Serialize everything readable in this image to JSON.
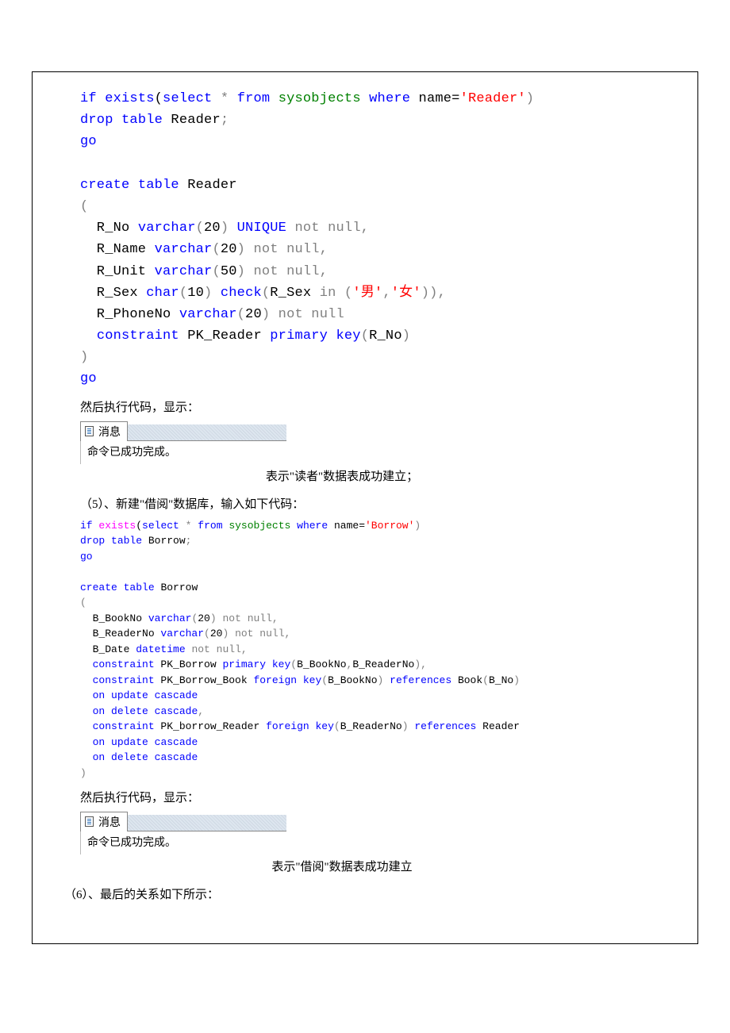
{
  "code1_lines": [
    [
      {
        "t": "if",
        "c": "kw"
      },
      {
        "t": " "
      },
      {
        "t": "exists",
        "c": "kw"
      },
      {
        "t": "("
      },
      {
        "t": "select",
        "c": "kw"
      },
      {
        "t": " "
      },
      {
        "t": "*",
        "c": "gray"
      },
      {
        "t": " "
      },
      {
        "t": "from",
        "c": "kw"
      },
      {
        "t": " "
      },
      {
        "t": "sysobjects",
        "c": "sys"
      },
      {
        "t": " "
      },
      {
        "t": "where",
        "c": "kw"
      },
      {
        "t": " name"
      },
      {
        "t": "="
      },
      {
        "t": "'Reader'",
        "c": "str"
      },
      {
        "t": ")",
        "c": "gray"
      }
    ],
    [
      {
        "t": "drop",
        "c": "kw"
      },
      {
        "t": " "
      },
      {
        "t": "table",
        "c": "kw"
      },
      {
        "t": " Reader"
      },
      {
        "t": ";",
        "c": "gray"
      }
    ],
    [
      {
        "t": "go",
        "c": "kw"
      }
    ],
    [
      {
        "t": " "
      }
    ],
    [
      {
        "t": "create",
        "c": "kw"
      },
      {
        "t": " "
      },
      {
        "t": "table",
        "c": "kw"
      },
      {
        "t": " Reader"
      }
    ],
    [
      {
        "t": "(",
        "c": "gray"
      }
    ],
    [
      {
        "t": "  R_No "
      },
      {
        "t": "varchar",
        "c": "kw"
      },
      {
        "t": "(",
        "c": "gray"
      },
      {
        "t": "20"
      },
      {
        "t": ")",
        "c": "gray"
      },
      {
        "t": " "
      },
      {
        "t": "UNIQUE",
        "c": "kw"
      },
      {
        "t": " "
      },
      {
        "t": "not",
        "c": "gray"
      },
      {
        "t": " "
      },
      {
        "t": "null",
        "c": "gray"
      },
      {
        "t": ",",
        "c": "gray"
      }
    ],
    [
      {
        "t": "  R_Name "
      },
      {
        "t": "varchar",
        "c": "kw"
      },
      {
        "t": "(",
        "c": "gray"
      },
      {
        "t": "20"
      },
      {
        "t": ")",
        "c": "gray"
      },
      {
        "t": " "
      },
      {
        "t": "not",
        "c": "gray"
      },
      {
        "t": " "
      },
      {
        "t": "null",
        "c": "gray"
      },
      {
        "t": ",",
        "c": "gray"
      }
    ],
    [
      {
        "t": "  R_Unit "
      },
      {
        "t": "varchar",
        "c": "kw"
      },
      {
        "t": "(",
        "c": "gray"
      },
      {
        "t": "50"
      },
      {
        "t": ")",
        "c": "gray"
      },
      {
        "t": " "
      },
      {
        "t": "not",
        "c": "gray"
      },
      {
        "t": " "
      },
      {
        "t": "null",
        "c": "gray"
      },
      {
        "t": ",",
        "c": "gray"
      }
    ],
    [
      {
        "t": "  R_Sex "
      },
      {
        "t": "char",
        "c": "kw"
      },
      {
        "t": "(",
        "c": "gray"
      },
      {
        "t": "10"
      },
      {
        "t": ")",
        "c": "gray"
      },
      {
        "t": " "
      },
      {
        "t": "check",
        "c": "kw"
      },
      {
        "t": "(",
        "c": "gray"
      },
      {
        "t": "R_Sex "
      },
      {
        "t": "in",
        "c": "gray"
      },
      {
        "t": " "
      },
      {
        "t": "(",
        "c": "gray"
      },
      {
        "t": "'男'",
        "c": "str"
      },
      {
        "t": ",",
        "c": "gray"
      },
      {
        "t": "'女'",
        "c": "str"
      },
      {
        "t": ")),",
        "c": "gray"
      }
    ],
    [
      {
        "t": "  R_PhoneNo "
      },
      {
        "t": "varchar",
        "c": "kw"
      },
      {
        "t": "(",
        "c": "gray"
      },
      {
        "t": "20"
      },
      {
        "t": ")",
        "c": "gray"
      },
      {
        "t": " "
      },
      {
        "t": "not",
        "c": "gray"
      },
      {
        "t": " "
      },
      {
        "t": "null",
        "c": "gray"
      }
    ],
    [
      {
        "t": "  "
      },
      {
        "t": "constraint",
        "c": "kw"
      },
      {
        "t": " PK_Reader "
      },
      {
        "t": "primary",
        "c": "kw"
      },
      {
        "t": " "
      },
      {
        "t": "key",
        "c": "kw"
      },
      {
        "t": "(",
        "c": "gray"
      },
      {
        "t": "R_No"
      },
      {
        "t": ")",
        "c": "gray"
      }
    ],
    [
      {
        "t": ")",
        "c": "gray"
      }
    ],
    [
      {
        "t": "go",
        "c": "kw"
      }
    ]
  ],
  "narr1": "然后执行代码，显示：",
  "msg_tab": "消息",
  "msg_text": "命令已成功完成。",
  "caption1": "表示\"读者\"数据表成功建立；",
  "step5": "（5）、新建\"借阅\"数据库，输入如下代码：",
  "code2_lines": [
    [
      {
        "t": "if",
        "c": "kw"
      },
      {
        "t": " "
      },
      {
        "t": "exists",
        "c": "fn"
      },
      {
        "t": "("
      },
      {
        "t": "select",
        "c": "kw"
      },
      {
        "t": " "
      },
      {
        "t": "*",
        "c": "gray"
      },
      {
        "t": " "
      },
      {
        "t": "from",
        "c": "kw"
      },
      {
        "t": " "
      },
      {
        "t": "sysobjects",
        "c": "sys"
      },
      {
        "t": " "
      },
      {
        "t": "where",
        "c": "kw"
      },
      {
        "t": " name"
      },
      {
        "t": "="
      },
      {
        "t": "'Borrow'",
        "c": "str"
      },
      {
        "t": ")",
        "c": "gray"
      }
    ],
    [
      {
        "t": "drop",
        "c": "kw"
      },
      {
        "t": " "
      },
      {
        "t": "table",
        "c": "kw"
      },
      {
        "t": " Borrow"
      },
      {
        "t": ";",
        "c": "gray"
      }
    ],
    [
      {
        "t": "go",
        "c": "kw"
      }
    ],
    [
      {
        "t": " "
      }
    ],
    [
      {
        "t": "create",
        "c": "kw"
      },
      {
        "t": " "
      },
      {
        "t": "table",
        "c": "kw"
      },
      {
        "t": " Borrow"
      }
    ],
    [
      {
        "t": "(",
        "c": "gray"
      }
    ],
    [
      {
        "t": "  B_BookNo "
      },
      {
        "t": "varchar",
        "c": "kw"
      },
      {
        "t": "(",
        "c": "gray"
      },
      {
        "t": "20"
      },
      {
        "t": ")",
        "c": "gray"
      },
      {
        "t": " "
      },
      {
        "t": "not",
        "c": "gray"
      },
      {
        "t": " "
      },
      {
        "t": "null",
        "c": "gray"
      },
      {
        "t": ",",
        "c": "gray"
      }
    ],
    [
      {
        "t": "  B_ReaderNo "
      },
      {
        "t": "varchar",
        "c": "kw"
      },
      {
        "t": "(",
        "c": "gray"
      },
      {
        "t": "20"
      },
      {
        "t": ")",
        "c": "gray"
      },
      {
        "t": " "
      },
      {
        "t": "not",
        "c": "gray"
      },
      {
        "t": " "
      },
      {
        "t": "null",
        "c": "gray"
      },
      {
        "t": ",",
        "c": "gray"
      }
    ],
    [
      {
        "t": "  B_Date "
      },
      {
        "t": "datetime",
        "c": "kw"
      },
      {
        "t": " "
      },
      {
        "t": "not",
        "c": "gray"
      },
      {
        "t": " "
      },
      {
        "t": "null",
        "c": "gray"
      },
      {
        "t": ",",
        "c": "gray"
      }
    ],
    [
      {
        "t": "  "
      },
      {
        "t": "constraint",
        "c": "kw"
      },
      {
        "t": " PK_Borrow "
      },
      {
        "t": "primary",
        "c": "kw"
      },
      {
        "t": " "
      },
      {
        "t": "key",
        "c": "kw"
      },
      {
        "t": "(",
        "c": "gray"
      },
      {
        "t": "B_BookNo"
      },
      {
        "t": ",",
        "c": "gray"
      },
      {
        "t": "B_ReaderNo"
      },
      {
        "t": "),",
        "c": "gray"
      }
    ],
    [
      {
        "t": "  "
      },
      {
        "t": "constraint",
        "c": "kw"
      },
      {
        "t": " PK_Borrow_Book "
      },
      {
        "t": "foreign",
        "c": "kw"
      },
      {
        "t": " "
      },
      {
        "t": "key",
        "c": "kw"
      },
      {
        "t": "(",
        "c": "gray"
      },
      {
        "t": "B_BookNo"
      },
      {
        "t": ")",
        "c": "gray"
      },
      {
        "t": " "
      },
      {
        "t": "references",
        "c": "kw"
      },
      {
        "t": " Book"
      },
      {
        "t": "(",
        "c": "gray"
      },
      {
        "t": "B_No"
      },
      {
        "t": ")",
        "c": "gray"
      }
    ],
    [
      {
        "t": "  "
      },
      {
        "t": "on",
        "c": "kw"
      },
      {
        "t": " "
      },
      {
        "t": "update",
        "c": "kw"
      },
      {
        "t": " "
      },
      {
        "t": "cascade",
        "c": "kw"
      }
    ],
    [
      {
        "t": "  "
      },
      {
        "t": "on",
        "c": "kw"
      },
      {
        "t": " "
      },
      {
        "t": "delete",
        "c": "kw"
      },
      {
        "t": " "
      },
      {
        "t": "cascade",
        "c": "kw"
      },
      {
        "t": ",",
        "c": "gray"
      }
    ],
    [
      {
        "t": "  "
      },
      {
        "t": "constraint",
        "c": "kw"
      },
      {
        "t": " PK_borrow_Reader "
      },
      {
        "t": "foreign",
        "c": "kw"
      },
      {
        "t": " "
      },
      {
        "t": "key",
        "c": "kw"
      },
      {
        "t": "(",
        "c": "gray"
      },
      {
        "t": "B_ReaderNo"
      },
      {
        "t": ")",
        "c": "gray"
      },
      {
        "t": " "
      },
      {
        "t": "references",
        "c": "kw"
      },
      {
        "t": " Reader"
      }
    ],
    [
      {
        "t": "  "
      },
      {
        "t": "on",
        "c": "kw"
      },
      {
        "t": " "
      },
      {
        "t": "update",
        "c": "kw"
      },
      {
        "t": " "
      },
      {
        "t": "cascade",
        "c": "kw"
      }
    ],
    [
      {
        "t": "  "
      },
      {
        "t": "on",
        "c": "kw"
      },
      {
        "t": " "
      },
      {
        "t": "delete",
        "c": "kw"
      },
      {
        "t": " "
      },
      {
        "t": "cascade",
        "c": "kw"
      }
    ],
    [
      {
        "t": ")",
        "c": "gray"
      }
    ]
  ],
  "narr2": "然后执行代码，显示：",
  "caption2": "表示\"借阅\"数据表成功建立",
  "step6": "（6）、最后的关系如下所示："
}
